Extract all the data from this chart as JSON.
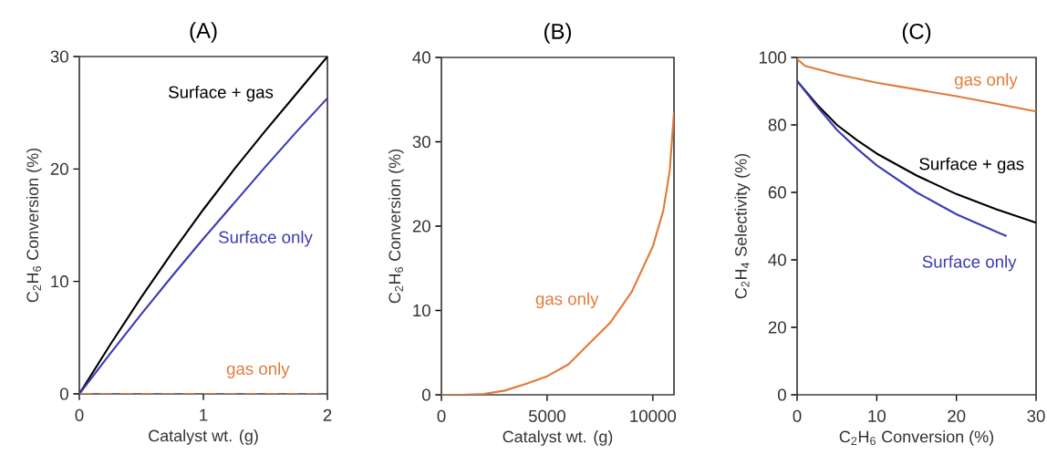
{
  "chart_data": [
    {
      "type": "line",
      "title": "(A)",
      "xlabel": "Catalyst wt. (g)",
      "ylabel": "C$_{2}$H$_{6}$ Conversion (%)",
      "xlim": [
        0,
        2
      ],
      "ylim": [
        0,
        30
      ],
      "xticks": [
        0,
        1,
        2
      ],
      "yticks": [
        0,
        10,
        20,
        30
      ],
      "series": [
        {
          "name": "Surface + gas",
          "color": "#000000",
          "x": [
            0,
            0.25,
            0.5,
            0.75,
            1,
            1.25,
            1.5,
            1.75,
            2
          ],
          "values": [
            0,
            4.4,
            8.6,
            12.6,
            16.4,
            20.0,
            23.4,
            26.7,
            30
          ]
        },
        {
          "name": "Surface only",
          "color": "#3c3cb4",
          "x": [
            0,
            0.25,
            0.5,
            0.75,
            1,
            1.25,
            1.5,
            1.75,
            2
          ],
          "values": [
            0,
            3.6,
            7.1,
            10.5,
            13.8,
            17.0,
            20.2,
            23.3,
            26.3
          ]
        },
        {
          "name": "gas only",
          "color": "#e07b39",
          "line_style": "dashed",
          "x": [
            0,
            1,
            2
          ],
          "values": [
            0,
            0,
            0
          ]
        }
      ]
    },
    {
      "type": "line",
      "title": "(B)",
      "xlabel": "Catalyst wt. (g)",
      "ylabel": "C$_{2}$H$_{6}$ Conversion (%)",
      "xlim": [
        0,
        11000
      ],
      "ylim": [
        0,
        40
      ],
      "xticks": [
        0,
        5000,
        10000
      ],
      "yticks": [
        0,
        10,
        20,
        30,
        40
      ],
      "series": [
        {
          "name": "gas only",
          "color": "#e07b39",
          "x": [
            0,
            1000,
            2000,
            3000,
            4000,
            5000,
            6000,
            7000,
            8000,
            9000,
            10000,
            10500,
            10800,
            11000
          ],
          "values": [
            0,
            0,
            0.1,
            0.5,
            1.3,
            2.2,
            3.6,
            6.1,
            8.6,
            12.2,
            17.6,
            21.9,
            26.6,
            33.5
          ]
        }
      ]
    },
    {
      "type": "line",
      "title": "(C)",
      "xlabel": "C$_{2}$H$_{6}$ Conversion (%)",
      "ylabel": "C$_{2}$H$_{4}$ Selectivity (%)",
      "xlim": [
        0,
        30
      ],
      "ylim": [
        0,
        100
      ],
      "xticks": [
        0,
        10,
        20,
        30
      ],
      "yticks": [
        0,
        20,
        40,
        60,
        80,
        100
      ],
      "series": [
        {
          "name": "gas only",
          "color": "#e07b39",
          "x": [
            0,
            1,
            5,
            10,
            15,
            20,
            25,
            30
          ],
          "values": [
            99.5,
            97.5,
            95,
            92.5,
            90.5,
            88.5,
            86.3,
            84
          ]
        },
        {
          "name": "Surface + gas",
          "color": "#000000",
          "x": [
            0,
            2.5,
            5,
            7.5,
            10,
            15,
            20,
            25,
            30
          ],
          "values": [
            93,
            86,
            80,
            75.5,
            71.5,
            65,
            59.5,
            55,
            51
          ]
        },
        {
          "name": "Surface only",
          "color": "#3c3cb4",
          "x": [
            0,
            2.5,
            5,
            7.5,
            10,
            15,
            20,
            26.3
          ],
          "values": [
            93,
            85.5,
            78.5,
            73,
            68,
            60,
            53.5,
            47
          ]
        }
      ]
    }
  ]
}
